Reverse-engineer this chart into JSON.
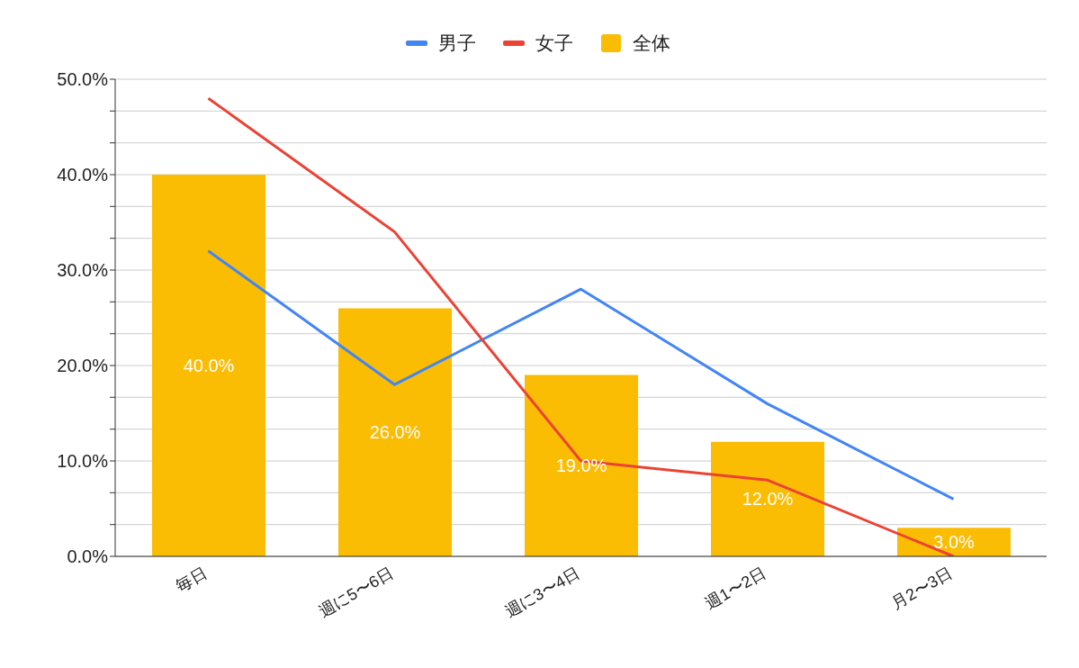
{
  "chart_data": {
    "type": "bar",
    "categories": [
      "毎日",
      "週に5〜6日",
      "週に3〜4日",
      "週1〜2日",
      "月2〜3日"
    ],
    "series": [
      {
        "name": "男子",
        "type": "line",
        "color": "#4285f4",
        "values": [
          32,
          18,
          28,
          16,
          6
        ]
      },
      {
        "name": "女子",
        "type": "line",
        "color": "#ea4335",
        "values": [
          48,
          34,
          10,
          8,
          0
        ]
      },
      {
        "name": "全体",
        "color": "#fbbc04",
        "values": [
          40,
          26,
          19,
          12,
          3
        ],
        "value_labels": [
          "40.0%",
          "26.0%",
          "19.0%",
          "12.0%",
          "3.0%"
        ]
      }
    ],
    "ylim": [
      0,
      50
    ],
    "yticks": [
      {
        "value": 0,
        "label": "0.0%"
      },
      {
        "value": 3.33,
        "label": null
      },
      {
        "value": 6.67,
        "label": null
      },
      {
        "value": 10,
        "label": "10.0%"
      },
      {
        "value": 13.33,
        "label": null
      },
      {
        "value": 16.67,
        "label": null
      },
      {
        "value": 20,
        "label": "20.0%"
      },
      {
        "value": 23.33,
        "label": null
      },
      {
        "value": 26.67,
        "label": null
      },
      {
        "value": 30,
        "label": "30.0%"
      },
      {
        "value": 33.33,
        "label": null
      },
      {
        "value": 36.67,
        "label": null
      },
      {
        "value": 40,
        "label": "40.0%"
      },
      {
        "value": 43.33,
        "label": null
      },
      {
        "value": 46.67,
        "label": null
      },
      {
        "value": 50,
        "label": "50.0%"
      }
    ],
    "grid": "y",
    "legend": "top",
    "marker": "none",
    "line_style": "solid"
  }
}
